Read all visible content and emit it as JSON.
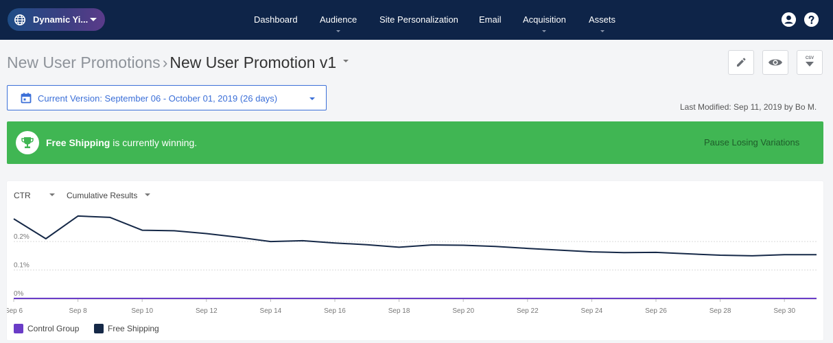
{
  "site_selector": {
    "label": "Dynamic Yi...",
    "icon": "globe-icon"
  },
  "nav": [
    {
      "label": "Dashboard",
      "has_submenu": false
    },
    {
      "label": "Audience",
      "has_submenu": true
    },
    {
      "label": "Site Personalization",
      "has_submenu": false
    },
    {
      "label": "Email",
      "has_submenu": false
    },
    {
      "label": "Acquisition",
      "has_submenu": true
    },
    {
      "label": "Assets",
      "has_submenu": true
    }
  ],
  "header_icons": {
    "user": "user-icon",
    "help": "help-icon"
  },
  "breadcrumb": {
    "parent": "New User Promotions",
    "separator": "›",
    "current": "New User Promotion v1"
  },
  "toolbar": {
    "edit": "pencil-icon",
    "preview": "eye-icon",
    "export": "csv-download-icon",
    "export_label": "CSV"
  },
  "version": {
    "text": "Current Version: September 06 - October 01, 2019 (26 days)"
  },
  "last_modified": "Last Modified: Sep 11, 2019  by Bo M.",
  "banner": {
    "winner": "Free Shipping",
    "text": " is currently winning.",
    "action": "Pause Losing Variations",
    "icon": "trophy-icon"
  },
  "colors": {
    "navbar": "#0e2448",
    "accent": "#3b6fd8",
    "banner": "#40b653",
    "control": "#6a3cc7",
    "free_shipping": "#152847"
  },
  "chart_controls": {
    "metric": "CTR",
    "mode": "Cumulative Results"
  },
  "chart_data": {
    "type": "line",
    "x": [
      "Sep 6",
      "Sep 7",
      "Sep 8",
      "Sep 9",
      "Sep 10",
      "Sep 11",
      "Sep 12",
      "Sep 13",
      "Sep 14",
      "Sep 15",
      "Sep 16",
      "Sep 17",
      "Sep 18",
      "Sep 19",
      "Sep 20",
      "Sep 21",
      "Sep 22",
      "Sep 23",
      "Sep 24",
      "Sep 25",
      "Sep 26",
      "Sep 27",
      "Sep 28",
      "Sep 29",
      "Sep 30",
      "Oct 1"
    ],
    "x_tick_labels": [
      "Sep 6",
      "Sep 8",
      "Sep 10",
      "Sep 12",
      "Sep 14",
      "Sep 16",
      "Sep 18",
      "Sep 20",
      "Sep 22",
      "Sep 24",
      "Sep 26",
      "Sep 28",
      "Sep 30"
    ],
    "y_tick_labels": [
      "0%",
      "0.1%",
      "0.2%"
    ],
    "ylim": [
      0,
      0.28
    ],
    "grid": true,
    "legend": "bottom-left",
    "series": [
      {
        "name": "Control Group",
        "color": "#6a3cc7",
        "values": [
          0,
          0,
          0,
          0,
          0,
          0,
          0,
          0,
          0,
          0,
          0,
          0,
          0,
          0,
          0,
          0,
          0,
          0,
          0,
          0,
          0,
          0,
          0,
          0,
          0,
          0
        ]
      },
      {
        "name": "Free Shipping",
        "color": "#152847",
        "values": [
          0.28,
          0.21,
          0.29,
          0.285,
          0.24,
          0.238,
          0.228,
          0.215,
          0.2,
          0.203,
          0.195,
          0.189,
          0.18,
          0.188,
          0.187,
          0.183,
          0.176,
          0.17,
          0.164,
          0.161,
          0.162,
          0.157,
          0.152,
          0.15,
          0.154,
          0.154
        ]
      }
    ]
  }
}
